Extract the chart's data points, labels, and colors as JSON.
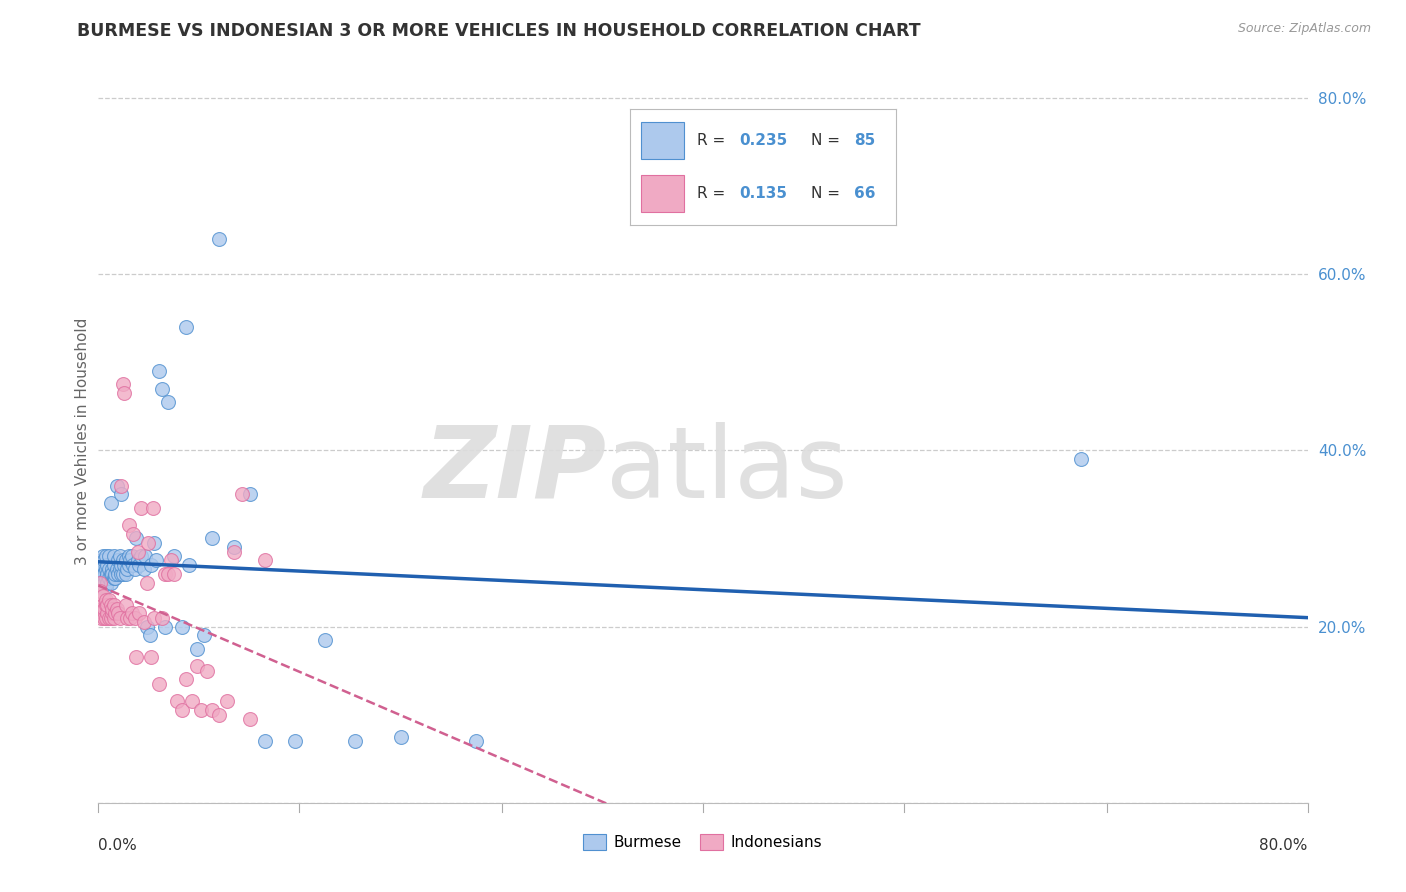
{
  "title": "BURMESE VS INDONESIAN 3 OR MORE VEHICLES IN HOUSEHOLD CORRELATION CHART",
  "source": "Source: ZipAtlas.com",
  "ylabel": "3 or more Vehicles in Household",
  "xlim": [
    0.0,
    0.8
  ],
  "ylim": [
    0.0,
    0.82
  ],
  "watermark_zip": "ZIP",
  "watermark_atlas": "atlas",
  "burmese_color": "#adc9ed",
  "indonesian_color": "#f0aac4",
  "burmese_line_color": "#2060b0",
  "indonesian_line_color": "#d06090",
  "burmese_color_edge": "#5090d0",
  "indonesian_color_edge": "#e070a0",
  "right_ytick_color": "#4a90d0",
  "background_color": "#ffffff",
  "grid_color": "#cccccc",
  "title_color": "#333333",
  "burmese_x": [
    0.001,
    0.001,
    0.002,
    0.002,
    0.002,
    0.003,
    0.003,
    0.003,
    0.003,
    0.004,
    0.004,
    0.004,
    0.005,
    0.005,
    0.005,
    0.005,
    0.006,
    0.006,
    0.006,
    0.007,
    0.007,
    0.007,
    0.008,
    0.008,
    0.008,
    0.009,
    0.009,
    0.01,
    0.01,
    0.01,
    0.011,
    0.011,
    0.012,
    0.012,
    0.013,
    0.013,
    0.014,
    0.014,
    0.015,
    0.015,
    0.015,
    0.016,
    0.016,
    0.017,
    0.018,
    0.018,
    0.019,
    0.02,
    0.02,
    0.021,
    0.022,
    0.023,
    0.024,
    0.025,
    0.026,
    0.027,
    0.028,
    0.03,
    0.031,
    0.032,
    0.034,
    0.035,
    0.037,
    0.038,
    0.04,
    0.042,
    0.044,
    0.046,
    0.05,
    0.055,
    0.058,
    0.06,
    0.065,
    0.07,
    0.075,
    0.08,
    0.09,
    0.1,
    0.11,
    0.13,
    0.15,
    0.17,
    0.2,
    0.25,
    0.65
  ],
  "burmese_y": [
    0.265,
    0.255,
    0.275,
    0.245,
    0.26,
    0.26,
    0.27,
    0.255,
    0.28,
    0.25,
    0.26,
    0.275,
    0.255,
    0.265,
    0.245,
    0.28,
    0.26,
    0.25,
    0.27,
    0.255,
    0.265,
    0.28,
    0.25,
    0.34,
    0.26,
    0.265,
    0.26,
    0.255,
    0.27,
    0.28,
    0.255,
    0.26,
    0.265,
    0.36,
    0.26,
    0.275,
    0.265,
    0.28,
    0.26,
    0.35,
    0.27,
    0.26,
    0.275,
    0.27,
    0.26,
    0.275,
    0.265,
    0.28,
    0.27,
    0.275,
    0.28,
    0.27,
    0.265,
    0.3,
    0.275,
    0.27,
    0.28,
    0.265,
    0.28,
    0.2,
    0.19,
    0.27,
    0.295,
    0.275,
    0.49,
    0.47,
    0.2,
    0.455,
    0.28,
    0.2,
    0.54,
    0.27,
    0.175,
    0.19,
    0.3,
    0.64,
    0.29,
    0.35,
    0.07,
    0.07,
    0.185,
    0.07,
    0.075,
    0.07,
    0.39
  ],
  "indonesian_x": [
    0.001,
    0.001,
    0.002,
    0.002,
    0.003,
    0.003,
    0.003,
    0.004,
    0.004,
    0.005,
    0.005,
    0.005,
    0.006,
    0.006,
    0.007,
    0.007,
    0.008,
    0.008,
    0.009,
    0.009,
    0.01,
    0.01,
    0.011,
    0.012,
    0.013,
    0.014,
    0.015,
    0.016,
    0.017,
    0.018,
    0.019,
    0.02,
    0.021,
    0.022,
    0.023,
    0.024,
    0.025,
    0.026,
    0.027,
    0.028,
    0.03,
    0.032,
    0.033,
    0.035,
    0.036,
    0.037,
    0.04,
    0.042,
    0.044,
    0.046,
    0.048,
    0.05,
    0.052,
    0.055,
    0.058,
    0.062,
    0.065,
    0.068,
    0.072,
    0.075,
    0.08,
    0.085,
    0.09,
    0.095,
    0.1,
    0.11
  ],
  "indonesian_y": [
    0.25,
    0.24,
    0.22,
    0.21,
    0.235,
    0.215,
    0.225,
    0.22,
    0.21,
    0.225,
    0.21,
    0.23,
    0.215,
    0.225,
    0.21,
    0.23,
    0.21,
    0.225,
    0.215,
    0.22,
    0.21,
    0.225,
    0.215,
    0.22,
    0.215,
    0.21,
    0.36,
    0.475,
    0.465,
    0.225,
    0.21,
    0.315,
    0.21,
    0.215,
    0.305,
    0.21,
    0.165,
    0.285,
    0.215,
    0.335,
    0.205,
    0.25,
    0.295,
    0.165,
    0.335,
    0.21,
    0.135,
    0.21,
    0.26,
    0.26,
    0.275,
    0.26,
    0.115,
    0.105,
    0.14,
    0.115,
    0.155,
    0.105,
    0.15,
    0.105,
    0.1,
    0.115,
    0.285,
    0.35,
    0.095,
    0.275
  ]
}
